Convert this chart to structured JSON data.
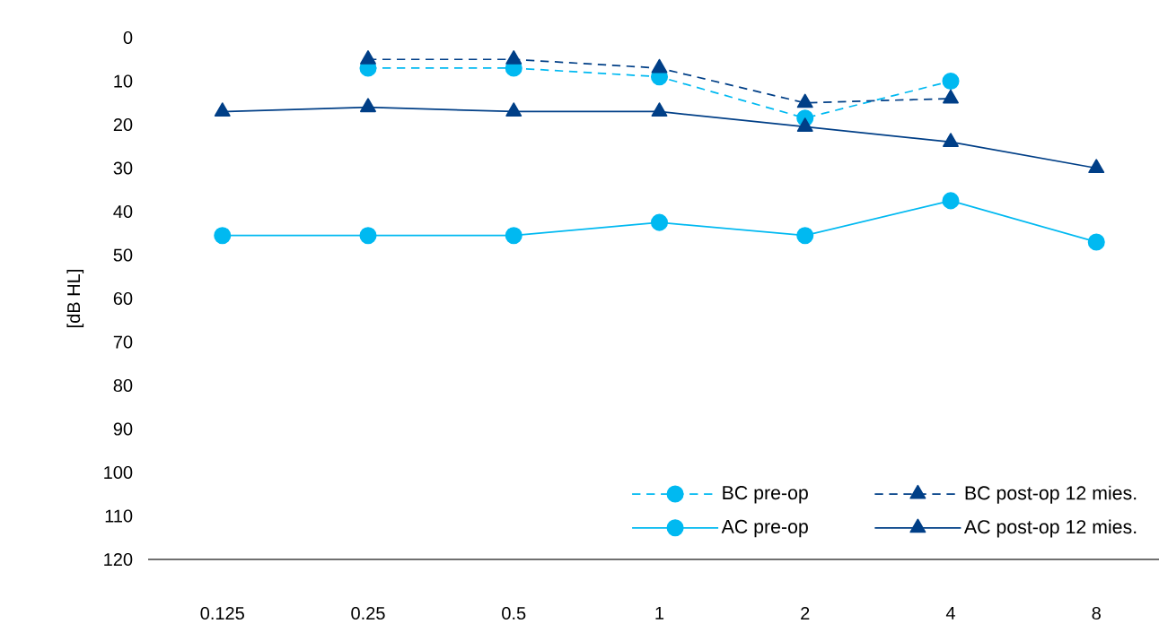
{
  "chart_data": {
    "type": "line",
    "ylabel": "[dB HL]",
    "categories": [
      "0.125",
      "0.25",
      "0.5",
      "1",
      "2",
      "4",
      "8"
    ],
    "ylim": [
      120,
      0
    ],
    "yticks": [
      0,
      10,
      20,
      30,
      40,
      50,
      60,
      70,
      80,
      90,
      100,
      110,
      120
    ],
    "legend": "bottom right",
    "grid": false,
    "series": [
      {
        "name": "BC pre-op",
        "color": "#00b9f1",
        "marker": "circle",
        "line_style": "dashed",
        "values": [
          null,
          7,
          7,
          9,
          18.5,
          10,
          null
        ]
      },
      {
        "name": "BC post-op 12 mies.",
        "color": "#003f87",
        "marker": "triangle",
        "line_style": "dashed",
        "values": [
          null,
          5,
          5,
          7,
          15,
          14,
          null
        ]
      },
      {
        "name": "AC pre-op",
        "color": "#00b9f1",
        "marker": "circle",
        "line_style": "solid",
        "values": [
          45.5,
          45.5,
          45.5,
          42.5,
          45.5,
          37.5,
          47
        ]
      },
      {
        "name": "AC post-op 12 mies.",
        "color": "#003f87",
        "marker": "triangle",
        "line_style": "solid",
        "values": [
          17,
          16,
          17,
          17,
          20.5,
          24,
          30
        ]
      }
    ]
  }
}
